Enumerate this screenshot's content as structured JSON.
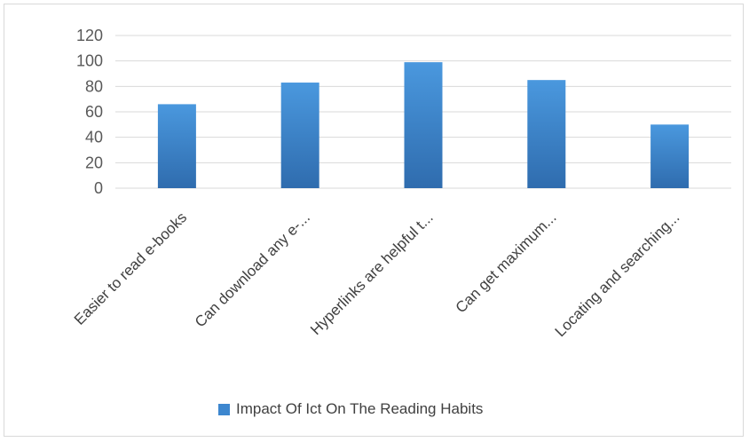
{
  "chart_data": {
    "type": "bar",
    "categories": [
      "Easier to read e-books",
      "Can download any e-...",
      "Hyperlinks are helpful t...",
      "Can get maximum...",
      "Locating and searching..."
    ],
    "series": [
      {
        "name": "Impact Of Ict On The Reading Habits",
        "values": [
          66,
          83,
          99,
          85,
          50
        ]
      }
    ],
    "ylim": [
      0,
      120
    ],
    "yticks": [
      "0",
      "20",
      "40",
      "60",
      "80",
      "100",
      "120"
    ],
    "grid": true,
    "legend": "bottom",
    "colors": {
      "bar_top": "#4a98de",
      "bar_bottom": "#2f6cae",
      "grid": "#d9d9d9",
      "legend_swatch": "#3d87cf"
    }
  }
}
